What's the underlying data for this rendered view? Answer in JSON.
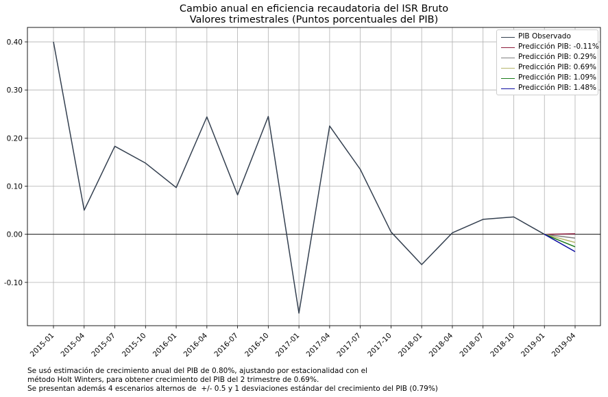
{
  "chart_data": {
    "type": "line",
    "title": "Cambio anual en eficiencia recaudatoria del ISR Bruto",
    "subtitle": "Valores trimestrales (Puntos porcentuales del PIB)",
    "categories": [
      "2015-01",
      "2015-04",
      "2015-07",
      "2015-10",
      "2016-01",
      "2016-04",
      "2016-07",
      "2016-10",
      "2017-01",
      "2017-04",
      "2017-07",
      "2017-10",
      "2018-01",
      "2018-04",
      "2018-07",
      "2018-10",
      "2019-01",
      "2019-04"
    ],
    "ylim": [
      -0.19,
      0.43
    ],
    "yticks": [
      -0.1,
      0.0,
      0.1,
      0.2,
      0.3,
      0.4
    ],
    "ytick_labels": [
      "-0.10",
      "0.00",
      "0.10",
      "0.20",
      "0.30",
      "0.40"
    ],
    "grid": true,
    "zero_line": true,
    "legend_position": "top-right",
    "series": [
      {
        "name": "PIB Observado",
        "color": "#333f4f",
        "values": [
          0.4,
          0.05,
          0.183,
          0.148,
          0.097,
          0.244,
          0.082,
          0.245,
          -0.164,
          0.225,
          0.135,
          0.005,
          -0.063,
          0.003,
          0.031,
          0.036,
          0.0,
          null
        ]
      },
      {
        "name": "Predicción PIB: -0.11%",
        "color": "#8b1a3a",
        "values": [
          null,
          null,
          null,
          null,
          null,
          null,
          null,
          null,
          null,
          null,
          null,
          null,
          null,
          null,
          null,
          null,
          0.0,
          0.001
        ]
      },
      {
        "name": "Predicción PIB: 0.29%",
        "color": "#7f7f7f",
        "values": [
          null,
          null,
          null,
          null,
          null,
          null,
          null,
          null,
          null,
          null,
          null,
          null,
          null,
          null,
          null,
          null,
          0.0,
          -0.008
        ]
      },
      {
        "name": "Predicción PIB: 0.69%",
        "color": "#b5b56a",
        "values": [
          null,
          null,
          null,
          null,
          null,
          null,
          null,
          null,
          null,
          null,
          null,
          null,
          null,
          null,
          null,
          null,
          0.0,
          -0.017
        ]
      },
      {
        "name": "Predicción PIB: 1.09%",
        "color": "#1a7a1a",
        "values": [
          null,
          null,
          null,
          null,
          null,
          null,
          null,
          null,
          null,
          null,
          null,
          null,
          null,
          null,
          null,
          null,
          0.0,
          -0.026
        ]
      },
      {
        "name": "Predicción PIB: 1.48%",
        "color": "#0a0aa0",
        "values": [
          null,
          null,
          null,
          null,
          null,
          null,
          null,
          null,
          null,
          null,
          null,
          null,
          null,
          null,
          null,
          null,
          0.0,
          -0.036
        ]
      }
    ]
  },
  "notes": {
    "line1": "Se usó estimación de crecimiento anual del PIB de 0.80%, ajustando por estacionalidad con el",
    "line2": "método Holt Winters, para obtener crecimiento del PIB del 2 trimestre de 0.69%.",
    "line3": "Se presentan además 4 escenarios alternos de  +/- 0.5 y 1 desviaciones estándar del crecimiento del PIB (0.79%)"
  }
}
